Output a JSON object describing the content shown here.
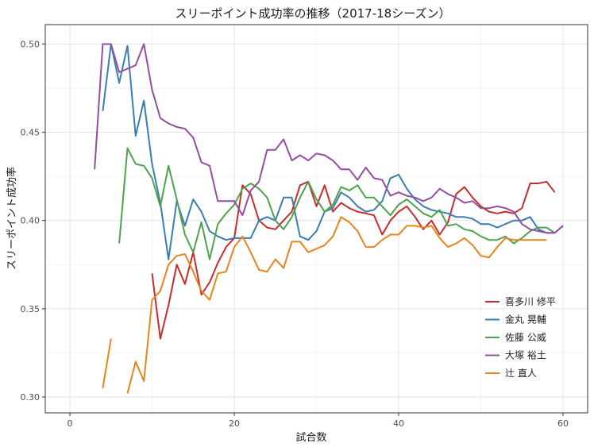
{
  "chart_data": {
    "type": "line",
    "title": "スリーポイント成功率の推移（2017-18シーズン）",
    "xlabel": "試合数",
    "ylabel": "スリーポイント成功率",
    "xlim": [
      -3,
      63
    ],
    "ylim": [
      0.291,
      0.511
    ],
    "x_ticks": [
      0,
      20,
      40,
      60
    ],
    "x_tick_labels": [
      "0",
      "20",
      "40",
      "60"
    ],
    "y_ticks": [
      0.3,
      0.35,
      0.4,
      0.45,
      0.5
    ],
    "y_tick_labels": [
      "0.30",
      "0.35",
      "0.40",
      "0.45",
      "0.50"
    ],
    "grid": true,
    "legend_position": "right",
    "series": [
      {
        "name": "喜多川 修平",
        "color": "#C62C2D",
        "points": [
          [
            10,
            0.37
          ],
          [
            11,
            0.333
          ],
          [
            12,
            0.352
          ],
          [
            13,
            0.375
          ],
          [
            14,
            0.364
          ],
          [
            15,
            0.382
          ],
          [
            16,
            0.358
          ],
          [
            17,
            0.365
          ],
          [
            18,
            0.376
          ],
          [
            19,
            0.385
          ],
          [
            20,
            0.39
          ],
          [
            21,
            0.42
          ],
          [
            22,
            0.415
          ],
          [
            23,
            0.4
          ],
          [
            24,
            0.396
          ],
          [
            25,
            0.395
          ],
          [
            26,
            0.4
          ],
          [
            27,
            0.405
          ],
          [
            28,
            0.42
          ],
          [
            29,
            0.422
          ],
          [
            30,
            0.408
          ],
          [
            31,
            0.42
          ],
          [
            32,
            0.405
          ],
          [
            33,
            0.41
          ],
          [
            34,
            0.407
          ],
          [
            35,
            0.405
          ],
          [
            36,
            0.404
          ],
          [
            37,
            0.403
          ],
          [
            38,
            0.392
          ],
          [
            39,
            0.4
          ],
          [
            40,
            0.405
          ],
          [
            41,
            0.408
          ],
          [
            42,
            0.402
          ],
          [
            43,
            0.395
          ],
          [
            44,
            0.4
          ],
          [
            45,
            0.392
          ],
          [
            46,
            0.399
          ],
          [
            47,
            0.415
          ],
          [
            48,
            0.419
          ],
          [
            49,
            0.413
          ],
          [
            50,
            0.408
          ],
          [
            51,
            0.405
          ],
          [
            52,
            0.404
          ],
          [
            53,
            0.405
          ],
          [
            54,
            0.404
          ],
          [
            55,
            0.407
          ],
          [
            56,
            0.421
          ],
          [
            57,
            0.421
          ],
          [
            58,
            0.422
          ],
          [
            59,
            0.416
          ]
        ]
      },
      {
        "name": "金丸 晃輔",
        "color": "#3A7DB0",
        "points": [
          [
            4,
            0.462
          ],
          [
            5,
            0.5
          ],
          [
            6,
            0.478
          ],
          [
            7,
            0.499
          ],
          [
            8,
            0.448
          ],
          [
            9,
            0.468
          ],
          [
            10,
            0.432
          ],
          [
            11,
            0.41
          ],
          [
            12,
            0.378
          ],
          [
            13,
            0.411
          ],
          [
            14,
            0.397
          ],
          [
            15,
            0.412
          ],
          [
            16,
            0.405
          ],
          [
            17,
            0.394
          ],
          [
            18,
            0.391
          ],
          [
            19,
            0.389
          ],
          [
            20,
            0.39
          ],
          [
            21,
            0.39
          ],
          [
            22,
            0.39
          ],
          [
            23,
            0.4
          ],
          [
            24,
            0.402
          ],
          [
            25,
            0.4
          ],
          [
            26,
            0.413
          ],
          [
            27,
            0.413
          ],
          [
            28,
            0.391
          ],
          [
            29,
            0.389
          ],
          [
            30,
            0.394
          ],
          [
            31,
            0.405
          ],
          [
            32,
            0.407
          ],
          [
            33,
            0.416
          ],
          [
            34,
            0.413
          ],
          [
            35,
            0.408
          ],
          [
            36,
            0.405
          ],
          [
            37,
            0.406
          ],
          [
            38,
            0.411
          ],
          [
            39,
            0.424
          ],
          [
            40,
            0.426
          ],
          [
            41,
            0.418
          ],
          [
            42,
            0.412
          ],
          [
            43,
            0.408
          ],
          [
            44,
            0.406
          ],
          [
            45,
            0.405
          ],
          [
            46,
            0.404
          ],
          [
            47,
            0.402
          ],
          [
            48,
            0.402
          ],
          [
            49,
            0.401
          ],
          [
            50,
            0.398
          ],
          [
            51,
            0.398
          ],
          [
            52,
            0.396
          ],
          [
            53,
            0.398
          ],
          [
            54,
            0.4
          ],
          [
            55,
            0.4
          ],
          [
            56,
            0.402
          ],
          [
            57,
            0.395
          ],
          [
            58,
            0.393
          ],
          [
            59,
            0.393
          ],
          [
            60,
            0.397
          ]
        ]
      },
      {
        "name": "佐藤 公威",
        "color": "#4DA34D",
        "points": [
          [
            6,
            0.387
          ],
          [
            7,
            0.441
          ],
          [
            8,
            0.432
          ],
          [
            9,
            0.431
          ],
          [
            10,
            0.424
          ],
          [
            11,
            0.408
          ],
          [
            12,
            0.431
          ],
          [
            13,
            0.412
          ],
          [
            14,
            0.392
          ],
          [
            15,
            0.382
          ],
          [
            16,
            0.399
          ],
          [
            17,
            0.378
          ],
          [
            18,
            0.398
          ],
          [
            19,
            0.404
          ],
          [
            20,
            0.409
          ],
          [
            21,
            0.418
          ],
          [
            22,
            0.421
          ],
          [
            23,
            0.418
          ],
          [
            24,
            0.413
          ],
          [
            25,
            0.4
          ],
          [
            26,
            0.395
          ],
          [
            27,
            0.402
          ],
          [
            28,
            0.413
          ],
          [
            29,
            0.422
          ],
          [
            30,
            0.412
          ],
          [
            31,
            0.405
          ],
          [
            32,
            0.409
          ],
          [
            33,
            0.419
          ],
          [
            34,
            0.417
          ],
          [
            35,
            0.42
          ],
          [
            36,
            0.413
          ],
          [
            37,
            0.413
          ],
          [
            38,
            0.408
          ],
          [
            39,
            0.403
          ],
          [
            40,
            0.409
          ],
          [
            41,
            0.412
          ],
          [
            42,
            0.408
          ],
          [
            43,
            0.404
          ],
          [
            44,
            0.402
          ],
          [
            45,
            0.406
          ],
          [
            46,
            0.397
          ],
          [
            47,
            0.398
          ],
          [
            48,
            0.395
          ],
          [
            49,
            0.394
          ],
          [
            50,
            0.391
          ],
          [
            51,
            0.389
          ],
          [
            52,
            0.389
          ],
          [
            53,
            0.391
          ],
          [
            54,
            0.387
          ],
          [
            55,
            0.39
          ],
          [
            56,
            0.394
          ],
          [
            57,
            0.396
          ],
          [
            58,
            0.396
          ],
          [
            59,
            0.393
          ]
        ]
      },
      {
        "name": "大塚 裕土",
        "color": "#944E9E",
        "points": [
          [
            3,
            0.429
          ],
          [
            4,
            0.5
          ],
          [
            5,
            0.5
          ],
          [
            6,
            0.484
          ],
          [
            7,
            0.486
          ],
          [
            8,
            0.488
          ],
          [
            9,
            0.5
          ],
          [
            10,
            0.474
          ],
          [
            11,
            0.458
          ],
          [
            12,
            0.455
          ],
          [
            13,
            0.453
          ],
          [
            14,
            0.452
          ],
          [
            15,
            0.447
          ],
          [
            16,
            0.433
          ],
          [
            17,
            0.431
          ],
          [
            18,
            0.411
          ],
          [
            19,
            0.411
          ],
          [
            20,
            0.411
          ],
          [
            21,
            0.403
          ],
          [
            22,
            0.417
          ],
          [
            23,
            0.422
          ],
          [
            24,
            0.44
          ],
          [
            25,
            0.44
          ],
          [
            26,
            0.446
          ],
          [
            27,
            0.434
          ],
          [
            28,
            0.437
          ],
          [
            29,
            0.434
          ],
          [
            30,
            0.438
          ],
          [
            31,
            0.437
          ],
          [
            32,
            0.434
          ],
          [
            33,
            0.429
          ],
          [
            34,
            0.429
          ],
          [
            35,
            0.423
          ],
          [
            36,
            0.43
          ],
          [
            37,
            0.424
          ],
          [
            38,
            0.423
          ],
          [
            39,
            0.414
          ],
          [
            40,
            0.416
          ],
          [
            41,
            0.414
          ],
          [
            42,
            0.413
          ],
          [
            43,
            0.411
          ],
          [
            44,
            0.413
          ],
          [
            45,
            0.418
          ],
          [
            46,
            0.415
          ],
          [
            47,
            0.413
          ],
          [
            48,
            0.41
          ],
          [
            49,
            0.411
          ],
          [
            50,
            0.407
          ],
          [
            51,
            0.407
          ],
          [
            52,
            0.408
          ],
          [
            53,
            0.407
          ],
          [
            54,
            0.405
          ],
          [
            55,
            0.398
          ],
          [
            56,
            0.395
          ],
          [
            57,
            0.394
          ],
          [
            58,
            0.393
          ],
          [
            59,
            0.393
          ],
          [
            60,
            0.397
          ]
        ]
      },
      {
        "name": "辻 直人",
        "color": "#E8841E",
        "points": [
          [
            4,
            0.305
          ],
          [
            5,
            0.333
          ],
          [
            7,
            0.302
          ],
          [
            8,
            0.32
          ],
          [
            9,
            0.309
          ],
          [
            10,
            0.355
          ],
          [
            11,
            0.36
          ],
          [
            12,
            0.375
          ],
          [
            13,
            0.38
          ],
          [
            14,
            0.381
          ],
          [
            15,
            0.371
          ],
          [
            16,
            0.36
          ],
          [
            17,
            0.355
          ],
          [
            18,
            0.37
          ],
          [
            19,
            0.371
          ],
          [
            20,
            0.385
          ],
          [
            21,
            0.391
          ],
          [
            22,
            0.382
          ],
          [
            23,
            0.372
          ],
          [
            24,
            0.371
          ],
          [
            25,
            0.378
          ],
          [
            26,
            0.373
          ],
          [
            27,
            0.388
          ],
          [
            28,
            0.388
          ],
          [
            29,
            0.382
          ],
          [
            30,
            0.384
          ],
          [
            31,
            0.386
          ],
          [
            32,
            0.391
          ],
          [
            33,
            0.402
          ],
          [
            34,
            0.399
          ],
          [
            35,
            0.394
          ],
          [
            36,
            0.385
          ],
          [
            37,
            0.385
          ],
          [
            38,
            0.389
          ],
          [
            39,
            0.392
          ],
          [
            40,
            0.392
          ],
          [
            41,
            0.397
          ],
          [
            42,
            0.397
          ],
          [
            43,
            0.396
          ],
          [
            44,
            0.397
          ],
          [
            45,
            0.39
          ],
          [
            46,
            0.385
          ],
          [
            47,
            0.387
          ],
          [
            48,
            0.39
          ],
          [
            49,
            0.386
          ],
          [
            50,
            0.38
          ],
          [
            51,
            0.379
          ],
          [
            52,
            0.385
          ],
          [
            53,
            0.39
          ],
          [
            54,
            0.389
          ],
          [
            55,
            0.389
          ],
          [
            56,
            0.389
          ],
          [
            57,
            0.389
          ],
          [
            58,
            0.389
          ]
        ]
      }
    ]
  }
}
